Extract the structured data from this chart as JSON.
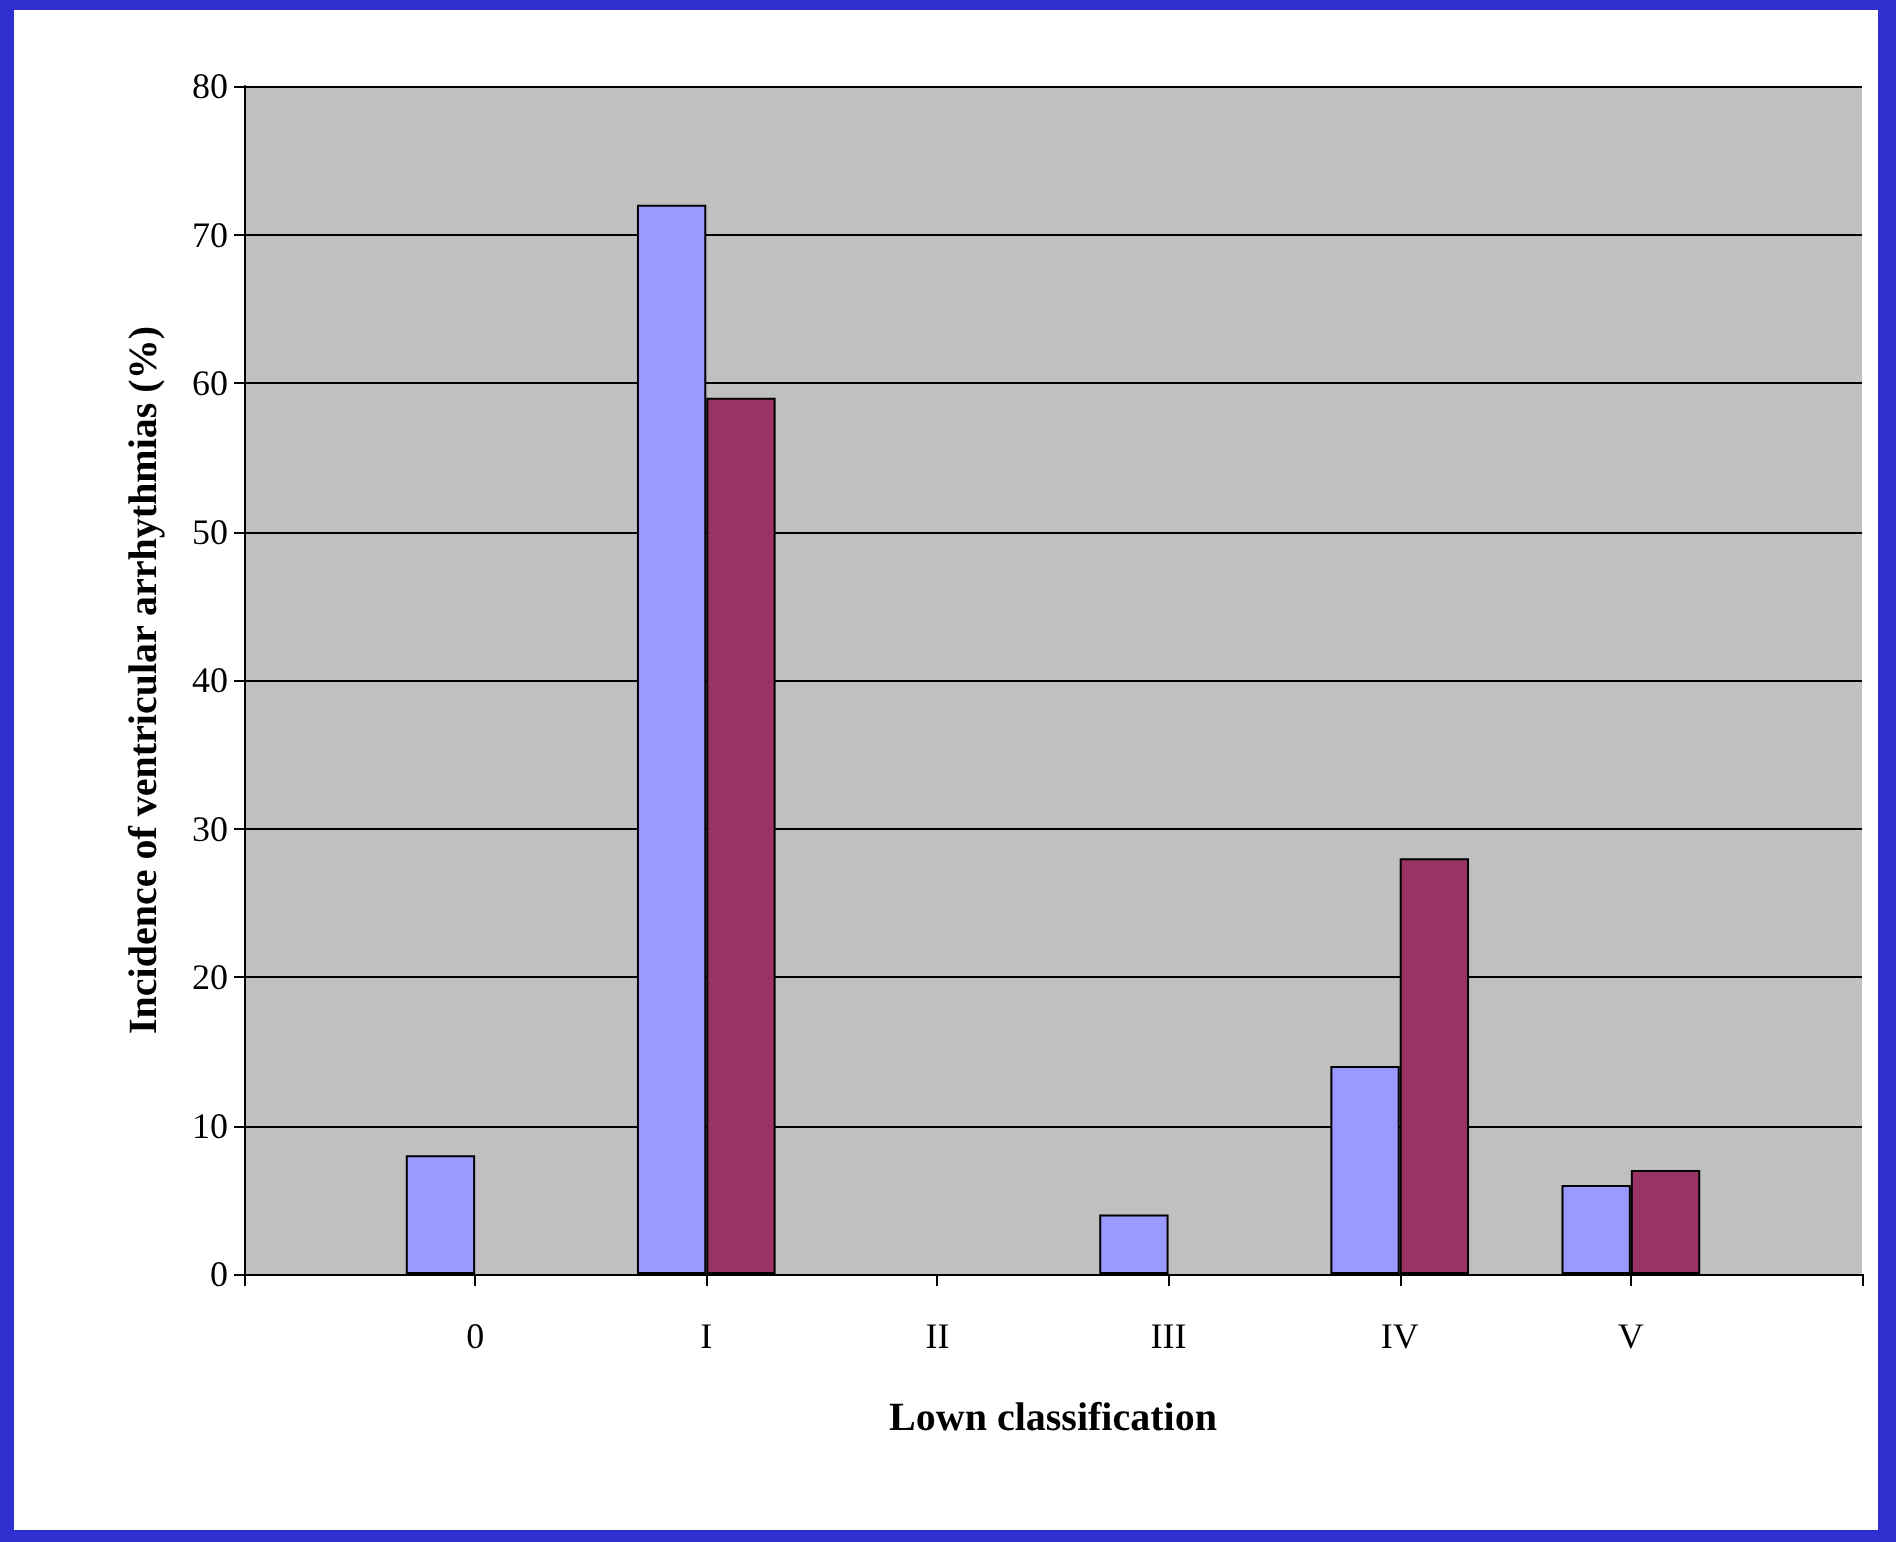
{
  "chart_data": {
    "type": "bar",
    "xlabel": "Lown classification",
    "ylabel": "Incidence of ventricular arrhythmias (%)",
    "categories": [
      null,
      "0",
      "I",
      "II",
      "III",
      "IV",
      "V",
      null
    ],
    "series": [
      {
        "color": "#9999ff",
        "values": [
          null,
          8,
          72,
          null,
          4,
          14,
          6,
          null
        ]
      },
      {
        "color": "#993366",
        "values": [
          null,
          null,
          59,
          null,
          null,
          28,
          7,
          null
        ]
      }
    ],
    "ylim": [
      0,
      80
    ],
    "yticks": [
      0,
      10,
      20,
      30,
      40,
      50,
      60,
      70,
      80
    ],
    "grid": "y",
    "legend": false
  }
}
